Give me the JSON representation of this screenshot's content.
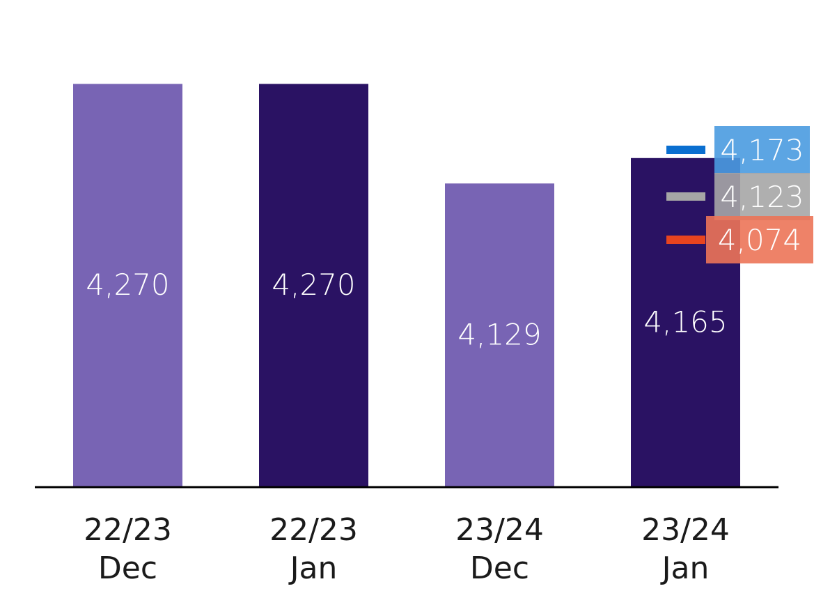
{
  "chart_data": {
    "type": "bar",
    "title": "",
    "xlabel": "",
    "ylabel": "",
    "grid": false,
    "legend": "none",
    "categories": [
      [
        "22/23",
        "Dec"
      ],
      [
        "22/23",
        "Jan"
      ],
      [
        "23/24",
        "Dec"
      ],
      [
        "23/24",
        "Jan"
      ]
    ],
    "values": [
      4270,
      4270,
      4129,
      4165
    ],
    "value_labels": [
      "4,270",
      "4,270",
      "4,129",
      "4,165"
    ],
    "bar_colors": [
      "#7864b4",
      "#2a1263",
      "#7864b4",
      "#2a1263"
    ],
    "ylim": [
      3700,
      4300
    ],
    "markers": [
      {
        "category_index": 3,
        "value": 4173,
        "label": "4,173",
        "color": "#0a6fd0",
        "label_bg": "#4a9be0"
      },
      {
        "category_index": 3,
        "value": 4123,
        "label": "4,123",
        "color": "#a6a6a6",
        "label_bg": "#a6a6a6"
      },
      {
        "category_index": 3,
        "value": 4074,
        "label": "4,074",
        "color": "#e8441f",
        "label_bg": "#ec7458"
      }
    ],
    "axis_color": "#000000",
    "tick_text_color": "#1a1a1a"
  }
}
